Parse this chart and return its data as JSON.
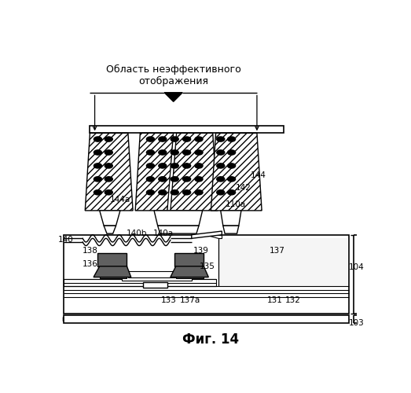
{
  "title": "Фиг. 14",
  "annotation_text": "Область неэффективного\nотображения",
  "bg_color": "#ffffff",
  "line_color": "#000000",
  "gray_dark": "#555555",
  "gray_mid": "#888888",
  "labels": [
    [
      340,
      212,
      "144"
    ],
    [
      316,
      232,
      "142"
    ],
    [
      303,
      260,
      "110a"
    ],
    [
      22,
      318,
      "140"
    ],
    [
      140,
      308,
      "140b"
    ],
    [
      183,
      308,
      "140a"
    ],
    [
      62,
      336,
      "138"
    ],
    [
      246,
      336,
      "139"
    ],
    [
      372,
      336,
      "137"
    ],
    [
      62,
      358,
      "136"
    ],
    [
      256,
      362,
      "135"
    ],
    [
      192,
      418,
      "133"
    ],
    [
      228,
      418,
      "137a"
    ],
    [
      368,
      418,
      "131"
    ],
    [
      398,
      418,
      "132"
    ],
    [
      112,
      252,
      "144a"
    ],
    [
      502,
      363,
      "104"
    ],
    [
      502,
      456,
      "103"
    ]
  ]
}
